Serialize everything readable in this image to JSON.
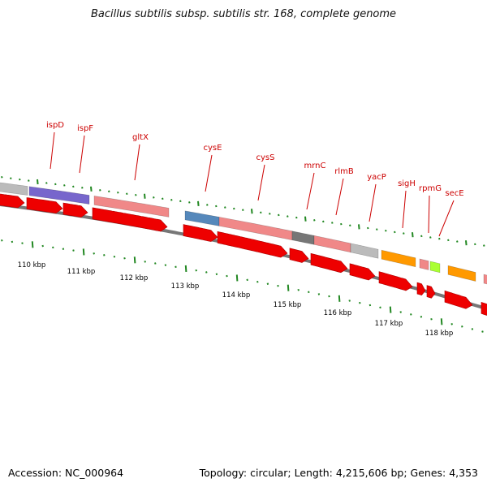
{
  "title": "Bacillus subtilis subsp. subtilis str. 168, complete genome",
  "footer": {
    "accession": "Accession: NC_000964",
    "stats": "Topology: circular; Length: 4,215,606 bp; Genes: 4,353"
  },
  "colors": {
    "cds_arrow": "#ee0000",
    "tick": "#228822",
    "backbone": "#777777",
    "label": "#cc0000"
  },
  "kbp_labels": [
    "110 kbp",
    "111 kbp",
    "112 kbp",
    "113 kbp",
    "114 kbp",
    "115 kbp",
    "116 kbp",
    "117 kbp",
    "118 kbp"
  ],
  "gene_labels": [
    {
      "name": "ispD"
    },
    {
      "name": "ispF"
    },
    {
      "name": "gltX"
    },
    {
      "name": "cysE"
    },
    {
      "name": "cysS"
    },
    {
      "name": "mrnC"
    },
    {
      "name": "rlmB"
    },
    {
      "name": "yacP"
    },
    {
      "name": "sigH"
    },
    {
      "name": "rpmG"
    },
    {
      "name": "secE"
    }
  ]
}
